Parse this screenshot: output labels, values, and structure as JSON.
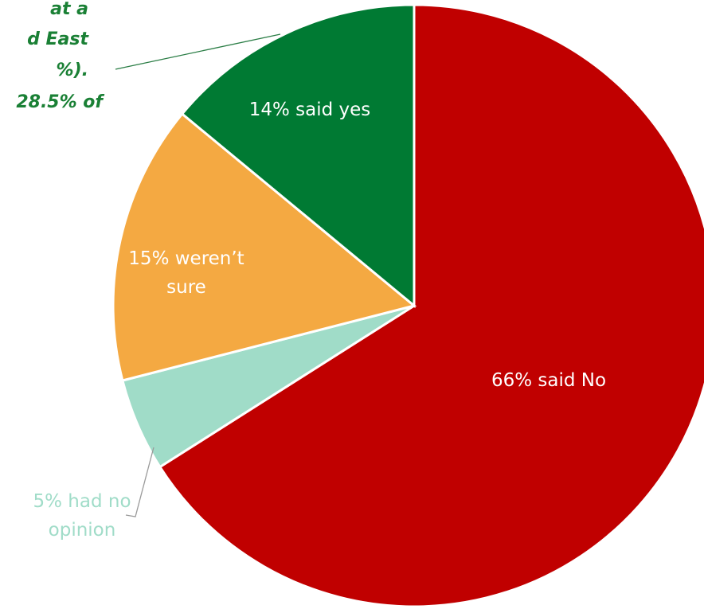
{
  "chart_data": {
    "type": "pie",
    "categories": [
      "said No",
      "had no opinion",
      "weren't sure",
      "said yes"
    ],
    "values": [
      66,
      5,
      15,
      14
    ],
    "unit": "%",
    "colors": [
      "#c00000",
      "#a0dcc8",
      "#f4a942",
      "#007a33"
    ],
    "slice_labels": [
      [
        "66% said No"
      ],
      [
        "5% had no",
        "opinion"
      ],
      [
        "15% weren’t",
        "sure"
      ],
      [
        "14% said yes"
      ]
    ],
    "label_colors": [
      "#ffffff",
      "#a0dcc8",
      "#ffffff",
      "#ffffff"
    ],
    "annotation": {
      "color": "#1a8035",
      "lines": [
        "at a",
        "d East",
        "%).",
        "28.5% of"
      ]
    }
  }
}
